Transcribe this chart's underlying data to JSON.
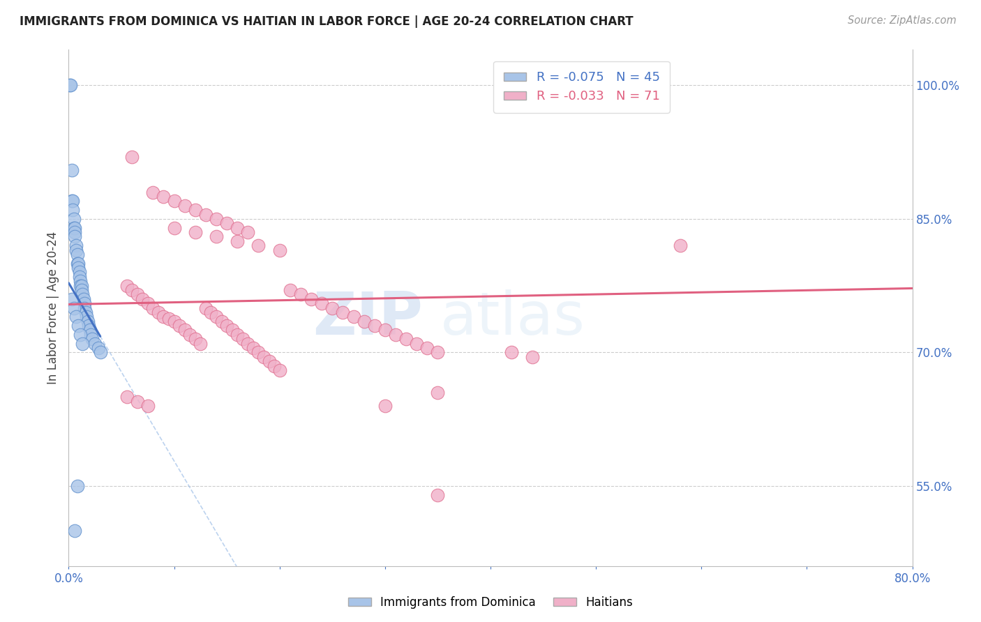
{
  "title": "IMMIGRANTS FROM DOMINICA VS HAITIAN IN LABOR FORCE | AGE 20-24 CORRELATION CHART",
  "source": "Source: ZipAtlas.com",
  "ylabel": "In Labor Force | Age 20-24",
  "xlim": [
    0.0,
    0.8
  ],
  "ylim": [
    0.46,
    1.04
  ],
  "yticks_right": [
    0.55,
    0.7,
    0.85,
    1.0
  ],
  "yticklabels_right": [
    "55.0%",
    "70.0%",
    "85.0%",
    "100.0%"
  ],
  "dominica_R": -0.075,
  "dominica_N": 45,
  "haitian_R": -0.033,
  "haitian_N": 71,
  "dominica_color": "#a8c4e8",
  "haitian_color": "#f0b0c8",
  "dominica_edge": "#6090cc",
  "haitian_edge": "#e07090",
  "watermark_zip": "ZIP",
  "watermark_atlas": "atlas",
  "background_color": "#ffffff",
  "grid_color": "#cccccc",
  "dominica_x": [
    0.001,
    0.002,
    0.003,
    0.003,
    0.004,
    0.004,
    0.005,
    0.005,
    0.006,
    0.006,
    0.006,
    0.007,
    0.007,
    0.008,
    0.008,
    0.009,
    0.009,
    0.01,
    0.01,
    0.011,
    0.011,
    0.012,
    0.012,
    0.013,
    0.014,
    0.015,
    0.015,
    0.016,
    0.017,
    0.018,
    0.019,
    0.02,
    0.021,
    0.022,
    0.025,
    0.028,
    0.03,
    0.003,
    0.005,
    0.007,
    0.009,
    0.011,
    0.013,
    0.008,
    0.006
  ],
  "dominica_y": [
    1.0,
    1.0,
    0.905,
    0.87,
    0.87,
    0.86,
    0.85,
    0.84,
    0.84,
    0.835,
    0.83,
    0.82,
    0.815,
    0.81,
    0.8,
    0.8,
    0.795,
    0.79,
    0.785,
    0.78,
    0.775,
    0.775,
    0.77,
    0.765,
    0.76,
    0.755,
    0.75,
    0.745,
    0.74,
    0.735,
    0.73,
    0.725,
    0.72,
    0.715,
    0.71,
    0.705,
    0.7,
    0.76,
    0.75,
    0.74,
    0.73,
    0.72,
    0.71,
    0.55,
    0.5
  ],
  "haitian_x": [
    0.055,
    0.06,
    0.065,
    0.07,
    0.075,
    0.08,
    0.085,
    0.09,
    0.095,
    0.1,
    0.105,
    0.11,
    0.115,
    0.12,
    0.125,
    0.13,
    0.135,
    0.14,
    0.145,
    0.15,
    0.155,
    0.16,
    0.165,
    0.17,
    0.175,
    0.18,
    0.185,
    0.19,
    0.195,
    0.2,
    0.21,
    0.22,
    0.23,
    0.24,
    0.25,
    0.26,
    0.27,
    0.28,
    0.29,
    0.3,
    0.31,
    0.32,
    0.33,
    0.34,
    0.35,
    0.1,
    0.12,
    0.14,
    0.16,
    0.18,
    0.2,
    0.08,
    0.09,
    0.1,
    0.11,
    0.12,
    0.13,
    0.14,
    0.15,
    0.16,
    0.17,
    0.055,
    0.065,
    0.075,
    0.35,
    0.42,
    0.44,
    0.58,
    0.3,
    0.35,
    0.06
  ],
  "haitian_y": [
    0.775,
    0.77,
    0.765,
    0.76,
    0.755,
    0.75,
    0.745,
    0.74,
    0.738,
    0.735,
    0.73,
    0.725,
    0.72,
    0.715,
    0.71,
    0.75,
    0.745,
    0.74,
    0.735,
    0.73,
    0.725,
    0.72,
    0.715,
    0.71,
    0.705,
    0.7,
    0.695,
    0.69,
    0.685,
    0.68,
    0.77,
    0.765,
    0.76,
    0.755,
    0.75,
    0.745,
    0.74,
    0.735,
    0.73,
    0.725,
    0.72,
    0.715,
    0.71,
    0.705,
    0.7,
    0.84,
    0.835,
    0.83,
    0.825,
    0.82,
    0.815,
    0.88,
    0.875,
    0.87,
    0.865,
    0.86,
    0.855,
    0.85,
    0.845,
    0.84,
    0.835,
    0.65,
    0.645,
    0.64,
    0.655,
    0.7,
    0.695,
    0.82,
    0.64,
    0.54,
    0.92
  ]
}
